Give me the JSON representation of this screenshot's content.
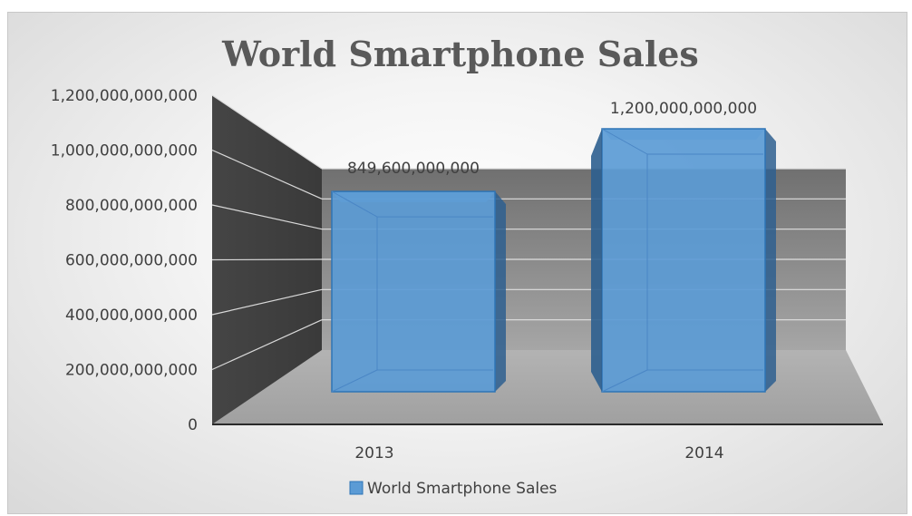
{
  "chart_data": {
    "type": "bar",
    "title": "World Smartphone Sales",
    "categories": [
      "2013",
      "2014"
    ],
    "series": [
      {
        "name": "World Smartphone Sales",
        "values": [
          849600000000,
          1200000000000
        ],
        "value_labels": [
          "849,600,000,000",
          "1,200,000,000,000"
        ],
        "color": "#5b9bd5"
      }
    ],
    "ylim": [
      0,
      1200000000000
    ],
    "y_ticks": [
      {
        "value": 0,
        "label": "0"
      },
      {
        "value": 200000000000,
        "label": "200,000,000,000"
      },
      {
        "value": 400000000000,
        "label": "400,000,000,000"
      },
      {
        "value": 600000000000,
        "label": "600,000,000,000"
      },
      {
        "value": 800000000000,
        "label": "800,000,000,000"
      },
      {
        "value": 1000000000000,
        "label": "1,000,000,000,000"
      },
      {
        "value": 1200000000000,
        "label": "1,200,000,000,000"
      }
    ],
    "style": "3d-column",
    "grid": true,
    "legend_position": "bottom",
    "colors": {
      "side_wall": "#3f3f3f",
      "back_wall": "#8c8c8c",
      "floor": "#b8b8b8",
      "bar": "#5b9bd5"
    }
  }
}
